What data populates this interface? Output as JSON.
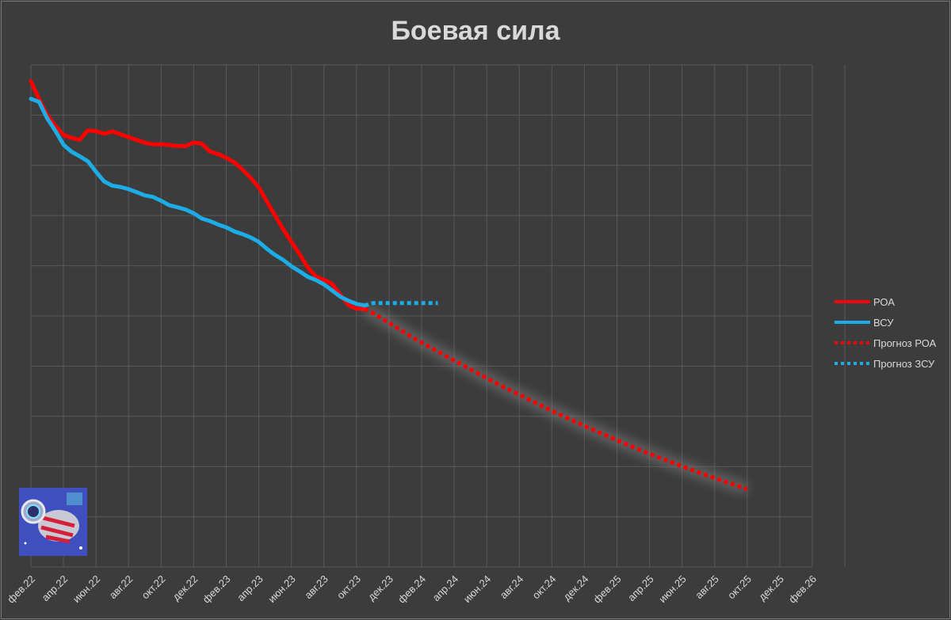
{
  "chart_data": {
    "type": "line",
    "title": "Боевая сила",
    "xlabel": "",
    "ylabel": "",
    "grid": true,
    "legend_position": "right",
    "x_tick_labels": [
      "фев.22",
      "апр.22",
      "июн.22",
      "авг.22",
      "окт.22",
      "дек.22",
      "фев.23",
      "апр.23",
      "июн.23",
      "авг.23",
      "окт.23",
      "дек.23",
      "фев.24",
      "апр.24",
      "июн.24",
      "авг.24",
      "окт.24",
      "дек.24",
      "фев.25",
      "апр.25",
      "июн.25",
      "авг.25",
      "окт.25",
      "дек.25",
      "фев.26"
    ],
    "y_tick_labels_shown": false,
    "ylim": [
      0,
      100
    ],
    "series": [
      {
        "name": "РОА",
        "color": "#ff0000",
        "style": "solid",
        "x": [
          0,
          1,
          2,
          3,
          4,
          5,
          6,
          7,
          8,
          9,
          10,
          11,
          12,
          13,
          14,
          15,
          16,
          17,
          18,
          19,
          20,
          21,
          22,
          23,
          24,
          25,
          26,
          27,
          28,
          29,
          30,
          31,
          32,
          33,
          34,
          35,
          36,
          37,
          38,
          39,
          40,
          41
        ],
        "y": [
          93.5,
          86.4,
          80.1,
          75.7,
          72.1,
          70.9,
          70.2,
          73.9,
          73.6,
          72.6,
          73.5,
          72.4,
          71.2,
          70.1,
          69.0,
          68.4,
          68.4,
          68.1,
          67.7,
          67.7,
          69.1,
          68.6,
          65.5,
          64.5,
          63.0,
          61.2,
          58.3,
          55.0,
          51.2,
          45.5,
          40.0,
          34.5,
          29.5,
          24.7,
          19.4,
          15.8,
          14.4,
          12.8,
          8.5,
          4.3,
          2.9,
          2.7
        ]
      },
      {
        "name": "ВСУ",
        "color": "#1cace6",
        "style": "solid",
        "x": [
          0,
          1,
          2,
          3,
          4,
          5,
          6,
          7,
          8,
          9,
          10,
          11,
          12,
          13,
          14,
          15,
          16,
          17,
          18,
          19,
          20,
          21,
          22,
          23,
          24,
          25,
          26,
          27,
          28,
          29,
          30,
          31,
          32,
          33,
          34,
          35,
          36,
          37,
          38,
          39,
          40,
          41
        ],
        "y": [
          86.5,
          85.3,
          78.7,
          73.8,
          68.2,
          65.4,
          63.6,
          61.6,
          57.4,
          53.6,
          51.9,
          51.4,
          50.5,
          49.3,
          48.0,
          47.4,
          45.9,
          44.1,
          43.3,
          42.4,
          40.9,
          38.8,
          37.8,
          36.4,
          35.3,
          33.7,
          32.6,
          31.3,
          29.5,
          26.7,
          24.3,
          22.3,
          19.8,
          17.8,
          15.6,
          14.3,
          12.6,
          10.2,
          7.7,
          6.1,
          4.8,
          4.2
        ]
      },
      {
        "name": "Прогноз РОА",
        "color": "#ff0000",
        "style": "dotted",
        "x": [
          41,
          42,
          43,
          44,
          45,
          46,
          47,
          48,
          49,
          50,
          51,
          52,
          53,
          54,
          55,
          56,
          57,
          58,
          59,
          60,
          61,
          62,
          63,
          64,
          65,
          66,
          67,
          68,
          69,
          70,
          71,
          72,
          73,
          74,
          75,
          76,
          77,
          78,
          79,
          80,
          81,
          82,
          83,
          84,
          85,
          86,
          87,
          88
        ],
        "y": [
          2.7,
          1.2,
          -0.8,
          -2.8,
          -4.8,
          -6.8,
          -8.8,
          -10.6,
          -12.4,
          -14.2,
          -16.0,
          -17.8,
          -19.5,
          -21.3,
          -23.0,
          -24.8,
          -26.5,
          -28.2,
          -29.8,
          -31.4,
          -33.0,
          -34.6,
          -36.2,
          -37.8,
          -39.3,
          -40.8,
          -42.3,
          -43.8,
          -45.3,
          -46.7,
          -48.1,
          -49.5,
          -50.9,
          -52.2,
          -53.6,
          -54.9,
          -56.2,
          -57.4,
          -58.7,
          -59.9,
          -61.1,
          -62.3,
          -63.4,
          -64.6,
          -65.7,
          -66.8,
          -67.9,
          -69.0
        ]
      },
      {
        "name": "Прогноз ЗСУ",
        "color": "#1cace6",
        "style": "dotted",
        "x": [
          41,
          42,
          43,
          44,
          45,
          46,
          47,
          48,
          49,
          50
        ],
        "y": [
          4.2,
          5.1,
          5.1,
          5.1,
          5.1,
          5.1,
          5.1,
          5.1,
          5.1,
          5.1
        ]
      }
    ]
  }
}
